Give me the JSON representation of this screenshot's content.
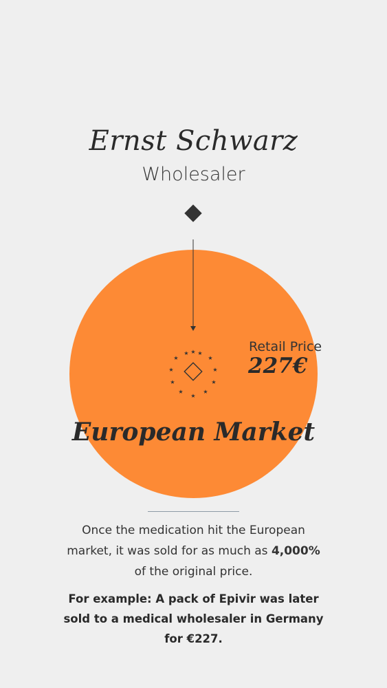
{
  "person": {
    "name": "Ernst Schwarz",
    "role": "Wholesaler"
  },
  "market": {
    "title": "European Market",
    "retail_label": "Retail Price",
    "retail_value": "227€",
    "icon": "eu-stars-diamond-icon"
  },
  "description": {
    "part1": "Once the medication hit the European market, it was sold for as much as ",
    "highlight": "4,000%",
    "part2": " of the original price."
  },
  "example": {
    "text": "For example: A pack of Epivir was later sold to a medical wholesaler in Germany for €227."
  },
  "colors": {
    "background": "#efefef",
    "circle": "#fd8a35",
    "ink": "#2a2a2a",
    "divider": "#8d9aa6"
  }
}
